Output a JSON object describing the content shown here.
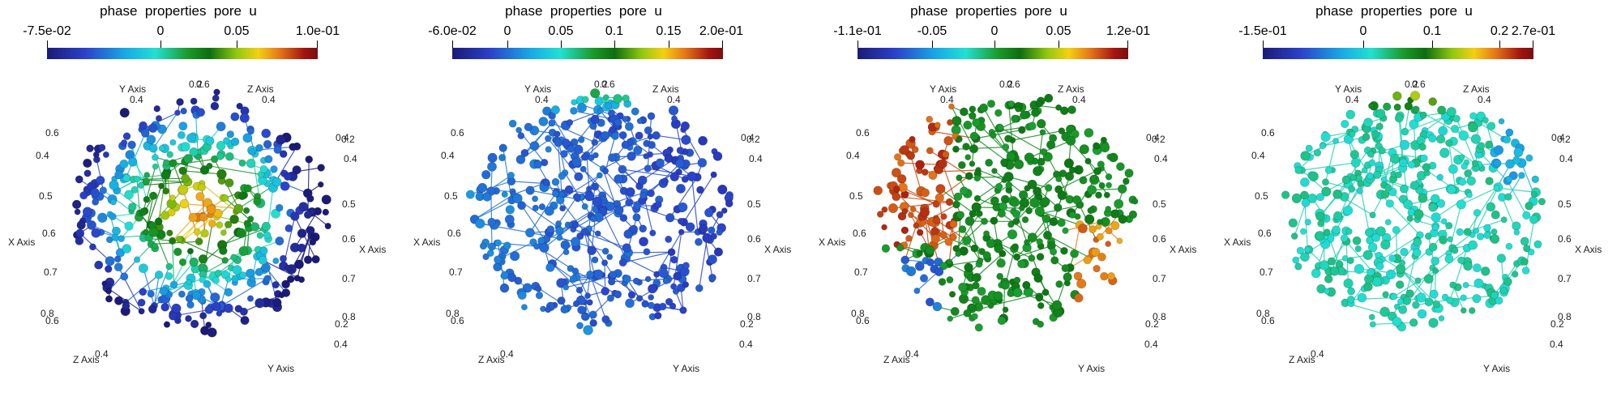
{
  "panels": [
    {
      "colorbar": {
        "title": "phase  properties  pore  u",
        "ticks": [
          "-7.5e-02",
          "0",
          "0.05",
          "1.0e-01"
        ]
      },
      "axes": [
        "0.6",
        "0.4",
        "0.5",
        "0.6",
        "0.7",
        "0.8",
        "0.6",
        "0.4",
        "0.2",
        "0.4",
        "0.5",
        "0.6",
        "0.7",
        "0.8",
        "0.2",
        "0.4",
        "0.4",
        "0.4",
        "0.2",
        "0.6",
        "X Axis",
        "X Axis",
        "Y Axis",
        "Y Axis",
        "Z Axis",
        "Z Axis",
        "0.4"
      ],
      "scheme": "center-hot"
    },
    {
      "colorbar": {
        "title": "phase  properties  pore  u",
        "ticks": [
          "-6.0e-02",
          "0",
          "0.05",
          "0.1",
          "0.15",
          "2.0e-01"
        ]
      },
      "axes": [
        "0.6",
        "0.4",
        "0.5",
        "0.6",
        "0.7",
        "0.8",
        "0.6",
        "0.4",
        "0.2",
        "0.4",
        "0.5",
        "0.6",
        "0.7",
        "0.8",
        "0.2",
        "0.4",
        "0.4",
        "0.4",
        "0.2",
        "0.6",
        "X Axis",
        "X Axis",
        "Y Axis",
        "Y Axis",
        "Z Axis",
        "Z Axis",
        "0.4"
      ],
      "scheme": "mostly-low"
    },
    {
      "colorbar": {
        "title": "phase  properties  pore  u",
        "ticks": [
          "-1.1e-01",
          "-0.05",
          "0",
          "0.05",
          "1.2e-01"
        ]
      },
      "axes": [
        "0.6",
        "0.4",
        "0.5",
        "0.6",
        "0.7",
        "0.8",
        "0.6",
        "0.4",
        "0.2",
        "0.4",
        "0.5",
        "0.6",
        "0.7",
        "0.8",
        "0.2",
        "0.4",
        "0.4",
        "0.4",
        "0.2",
        "0.6",
        "X Axis",
        "X Axis",
        "Y Axis",
        "Y Axis",
        "Z Axis",
        "Z Axis",
        "0.4"
      ],
      "scheme": "left-right-hot"
    },
    {
      "colorbar": {
        "title": "phase  properties  pore  u",
        "ticks": [
          "-1.5e-01",
          "0",
          "0.1",
          "0.2",
          "2.7e-01"
        ]
      },
      "axes": [
        "0.6",
        "0.4",
        "0.5",
        "0.6",
        "0.7",
        "0.8",
        "0.6",
        "0.4",
        "0.2",
        "0.4",
        "0.5",
        "0.6",
        "0.7",
        "0.8",
        "0.2",
        "0.4",
        "0.4",
        "0.4",
        "0.2",
        "0.6",
        "X Axis",
        "X Axis",
        "Y Axis",
        "Y Axis",
        "Z Axis",
        "Z Axis",
        "0.4"
      ],
      "scheme": "mostly-mid"
    }
  ]
}
